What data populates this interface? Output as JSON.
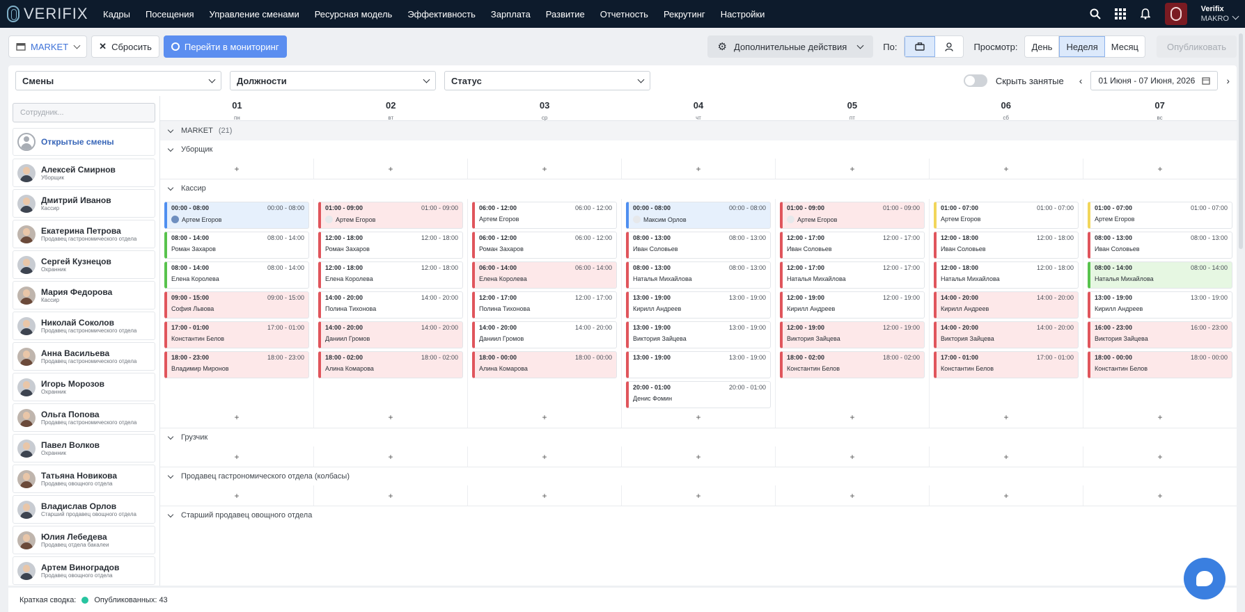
{
  "nav": {
    "brand": "VERIFIX",
    "items": [
      "Кадры",
      "Посещения",
      "Управление сменами",
      "Ресурсная модель",
      "Эффективность",
      "Зарплата",
      "Развитие",
      "Отчетность",
      "Рекрутинг",
      "Настройки"
    ],
    "user_name": "Verifix",
    "user_org": "MAKRO"
  },
  "toolbar": {
    "market": "MARKET",
    "reset": "Сбросить",
    "monitoring": "Перейти в мониторинг",
    "more_actions": "Дополнительные действия",
    "by_label": "По:",
    "view_label": "Просмотр:",
    "view_options": [
      "День",
      "Неделя",
      "Месяц"
    ],
    "view_selected": "Неделя",
    "publish": "Опубликовать"
  },
  "filters": {
    "shifts": "Смены",
    "positions": "Должности",
    "status": "Статус",
    "hide_busy": "Скрыть занятые",
    "date_range": "01 Июня - 07 Июня, 2026"
  },
  "sidebar": {
    "search_placeholder": "Сотрудник...",
    "open_shifts": "Открытые смены",
    "employees": [
      {
        "name": "Алексей Смирнов",
        "position": "Уборщик",
        "g": "m"
      },
      {
        "name": "Дмитрий Иванов",
        "position": "Кассир",
        "g": "m"
      },
      {
        "name": "Екатерина Петрова",
        "position": "Продавец гастрономического отдела",
        "g": "f"
      },
      {
        "name": "Сергей Кузнецов",
        "position": "Охранник",
        "g": "m"
      },
      {
        "name": "Мария Федорова",
        "position": "Кассир",
        "g": "f"
      },
      {
        "name": "Николай Соколов",
        "position": "Продавец гастрономического отдела",
        "g": "m"
      },
      {
        "name": "Анна Васильева",
        "position": "Продавец гастрономического отдела",
        "g": "f"
      },
      {
        "name": "Игорь Морозов",
        "position": "Охранник",
        "g": "m"
      },
      {
        "name": "Ольга Попова",
        "position": "Продавец гастрономического отдела",
        "g": "f"
      },
      {
        "name": "Павел Волков",
        "position": "Охранник",
        "g": "m"
      },
      {
        "name": "Татьяна Новикова",
        "position": "Продавец овощного отдела",
        "g": "f"
      },
      {
        "name": "Владислав Орлов",
        "position": "Старший продавец овощного отдела",
        "g": "m"
      },
      {
        "name": "Юлия Лебедева",
        "position": "Продавец отдела бакалеи",
        "g": "f"
      },
      {
        "name": "Артем Виноградов",
        "position": "Продавец овощного отдела",
        "g": "m"
      }
    ]
  },
  "calendar": {
    "days": [
      {
        "num": "01",
        "dow": "пн"
      },
      {
        "num": "02",
        "dow": "вт"
      },
      {
        "num": "03",
        "dow": "ср"
      },
      {
        "num": "04",
        "dow": "чт"
      },
      {
        "num": "05",
        "dow": "пт"
      },
      {
        "num": "06",
        "dow": "сб"
      },
      {
        "num": "07",
        "dow": "вс"
      }
    ],
    "market_group": "MARKET",
    "market_count": "(21)",
    "roles": {
      "cleaner": "Уборщик",
      "cashier": "Кассир",
      "loader": "Грузчик",
      "deli": "Продавец гастрономического отдела (колбасы)",
      "senior_veg": "Старший продавец овощного отдела"
    },
    "cashier_columns": [
      [
        {
          "time": "00:00 - 08:00",
          "name": "Артем Егоров",
          "style": "blue",
          "avatar": "photo"
        },
        {
          "time": "08:00 - 14:00",
          "name": "Роман Захаров",
          "style": "greenl"
        },
        {
          "time": "08:00 - 14:00",
          "name": "Елена Королева",
          "style": "greenl"
        },
        {
          "time": "09:00 - 15:00",
          "name": "София Львова",
          "style": "pink"
        },
        {
          "time": "17:00 - 01:00",
          "name": "Константин Белов",
          "style": "pink"
        },
        {
          "time": "18:00 - 23:00",
          "name": "Владимир Миронов",
          "style": "pink"
        }
      ],
      [
        {
          "time": "01:00 - 09:00",
          "name": "Артем Егоров",
          "style": "pink",
          "avatar": "empty"
        },
        {
          "time": "12:00 - 18:00",
          "name": "Роман Захаров",
          "style": "red"
        },
        {
          "time": "12:00 - 18:00",
          "name": "Елена Королева",
          "style": "red"
        },
        {
          "time": "14:00 - 20:00",
          "name": "Полина Тихонова",
          "style": "red"
        },
        {
          "time": "14:00 - 20:00",
          "name": "Даниил Громов",
          "style": "pink"
        },
        {
          "time": "18:00 - 02:00",
          "name": "Алина Комарова",
          "style": "pink"
        }
      ],
      [
        {
          "time": "06:00 - 12:00",
          "name": "Артем Егоров",
          "style": "red"
        },
        {
          "time": "06:00 - 12:00",
          "name": "Роман Захаров",
          "style": "red"
        },
        {
          "time": "06:00 - 14:00",
          "name": "Елена Королева",
          "style": "pink"
        },
        {
          "time": "12:00 - 17:00",
          "name": "Полина Тихонова",
          "style": "red"
        },
        {
          "time": "14:00 - 20:00",
          "name": "Даниил Громов",
          "style": "red"
        },
        {
          "time": "18:00 - 00:00",
          "name": "Алина Комарова",
          "style": "pink"
        }
      ],
      [
        {
          "time": "00:00 - 08:00",
          "name": "Максим Орлов",
          "style": "blue",
          "avatar": "empty"
        },
        {
          "time": "08:00 - 13:00",
          "name": "Иван Соловьев",
          "style": "red"
        },
        {
          "time": "08:00 - 13:00",
          "name": "Наталья Михайлова",
          "style": "red"
        },
        {
          "time": "13:00 - 19:00",
          "name": "Кирилл Андреев",
          "style": "red"
        },
        {
          "time": "13:00 - 19:00",
          "name": "Виктория Зайцева",
          "style": "red"
        },
        {
          "time": "13:00 - 19:00",
          "name": "",
          "style": "red"
        },
        {
          "time": "20:00 - 01:00",
          "name": "Денис Фомин",
          "style": "red"
        }
      ],
      [
        {
          "time": "01:00 - 09:00",
          "name": "Артем Егоров",
          "style": "pink",
          "avatar": "empty"
        },
        {
          "time": "12:00 - 17:00",
          "name": "Иван Соловьев",
          "style": "red"
        },
        {
          "time": "12:00 - 17:00",
          "name": "Наталья Михайлова",
          "style": "red"
        },
        {
          "time": "12:00 - 19:00",
          "name": "Кирилл Андреев",
          "style": "red"
        },
        {
          "time": "12:00 - 19:00",
          "name": "Виктория Зайцева",
          "style": "pink"
        },
        {
          "time": "18:00 - 02:00",
          "name": "Константин Белов",
          "style": "pink"
        }
      ],
      [
        {
          "time": "01:00 - 07:00",
          "name": "Артем Егоров",
          "style": "yellow"
        },
        {
          "time": "12:00 - 18:00",
          "name": "Иван Соловьев",
          "style": "red"
        },
        {
          "time": "12:00 - 18:00",
          "name": "Наталья Михайлова",
          "style": "red"
        },
        {
          "time": "14:00 - 20:00",
          "name": "Кирилл Андреев",
          "style": "pink"
        },
        {
          "time": "14:00 - 20:00",
          "name": "Виктория Зайцева",
          "style": "pink"
        },
        {
          "time": "17:00 - 01:00",
          "name": "Константин Белов",
          "style": "pink"
        }
      ],
      [
        {
          "time": "01:00 - 07:00",
          "name": "Артем Егоров",
          "style": "yellow"
        },
        {
          "time": "08:00 - 13:00",
          "name": "Иван Соловьев",
          "style": "red"
        },
        {
          "time": "08:00 - 14:00",
          "name": "Наталья Михайлова",
          "style": "greenf"
        },
        {
          "time": "13:00 - 19:00",
          "name": "Кирилл Андреев",
          "style": "red"
        },
        {
          "time": "16:00 - 23:00",
          "name": "Виктория Зайцева",
          "style": "pink"
        },
        {
          "time": "18:00 - 00:00",
          "name": "Константин Белов",
          "style": "pink"
        }
      ]
    ],
    "plus": "+"
  },
  "footer": {
    "summary": "Краткая сводка:",
    "published": "Опубликованных: 43"
  },
  "colors": {
    "nav_bg": "#0d1b2c",
    "primary": "#5b8ef0",
    "shift_red": "#e0555c",
    "shift_blue": "#4f8ff0",
    "shift_green": "#58c34d",
    "shift_yellow": "#f2d65a",
    "published_dot": "#28c4a0"
  }
}
